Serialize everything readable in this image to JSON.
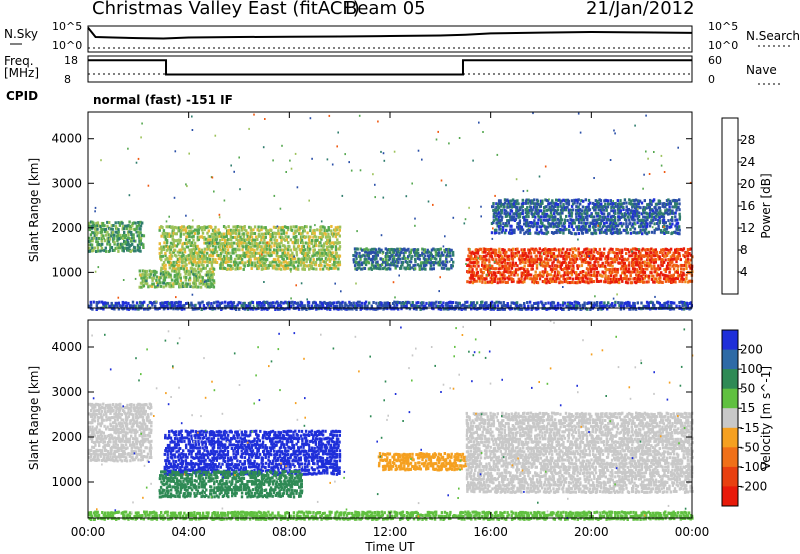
{
  "header": {
    "station": "Christmas Valley East (fitACF)",
    "beam": "Beam 05",
    "date": "21/Jan/2012"
  },
  "top_panel": {
    "left_label": "N.Sky",
    "right_label": "N.Search",
    "left_ticks": [
      "10^5",
      "10^0"
    ],
    "right_ticks": [
      "10^5",
      "10^0"
    ]
  },
  "freq_panel": {
    "left_label_1": "Freq.",
    "left_label_2": "[MHz]",
    "right_label": "Nave",
    "left_ticks": [
      "18",
      "8"
    ],
    "right_ticks": [
      "60",
      "0"
    ]
  },
  "cpid": {
    "label": "CPID",
    "value": "normal (fast) -151 IF"
  },
  "x_axis": {
    "label": "Time UT",
    "ticks": [
      "00:00",
      "04:00",
      "08:00",
      "12:00",
      "16:00",
      "20:00",
      "00:00"
    ]
  },
  "chart_data": [
    {
      "type": "line",
      "title": "N.Sky / N.Search",
      "x_hours": [
        0,
        0.3,
        1,
        2,
        3,
        4,
        6,
        8,
        10,
        12,
        14,
        15,
        16,
        18,
        20,
        22,
        24
      ],
      "series": [
        {
          "name": "N.Sky",
          "values": [
            120000,
            900,
            700,
            500,
            400,
            700,
            900,
            1000,
            1200,
            1500,
            2000,
            3000,
            6000,
            9000,
            12000,
            10000,
            8000
          ]
        },
        {
          "name": "N.Search",
          "values": [
            5,
            5,
            5,
            5,
            5,
            5,
            5,
            5,
            5,
            5,
            5,
            5,
            5,
            5,
            5,
            5,
            5
          ]
        }
      ],
      "ylim": [
        1,
        100000
      ],
      "yscale": "log"
    },
    {
      "type": "line",
      "title": "Freq. / Nave",
      "series": [
        {
          "name": "Freq. [MHz]",
          "x_hours": [
            0,
            3.1,
            3.1,
            14.9,
            14.9,
            24
          ],
          "values": [
            17,
            17,
            10.5,
            10.5,
            17,
            17
          ]
        },
        {
          "name": "Nave",
          "x_hours": [
            0,
            24
          ],
          "values": [
            7,
            7
          ]
        }
      ],
      "ylim_left": [
        8,
        18
      ],
      "ylim_right": [
        0,
        60
      ]
    },
    {
      "type": "heatmap",
      "title": "Power",
      "ylabel": "Slant Range [km]",
      "yticks": [
        1000,
        2000,
        3000,
        4000
      ],
      "ylim": [
        200,
        4600
      ],
      "xlim_hours": [
        0,
        24
      ],
      "colorbar_label": "Power [dB]",
      "colorbar_ticks": [
        4,
        8,
        12,
        16,
        20,
        24,
        28
      ],
      "colorbar_range": [
        0,
        32
      ],
      "colors": [
        "#1f2fd9",
        "#2a4fa8",
        "#2f7d6d",
        "#55a84f",
        "#9cc25a",
        "#e7b938",
        "#f08a1d",
        "#f05a12",
        "#e81a0a"
      ],
      "echo_regions": [
        {
          "t0": 0.0,
          "t1": 2.2,
          "r0": 1500,
          "r1": 2200,
          "value": 12
        },
        {
          "t0": 2.8,
          "t1": 10.0,
          "r0": 1100,
          "r1": 2100,
          "value": 16
        },
        {
          "t0": 2.0,
          "t1": 5.0,
          "r0": 700,
          "r1": 1100,
          "value": 14
        },
        {
          "t0": 10.5,
          "t1": 14.5,
          "r0": 1100,
          "r1": 1600,
          "value": 8
        },
        {
          "t0": 15.0,
          "t1": 24.0,
          "r0": 800,
          "r1": 1600,
          "value": 28
        },
        {
          "t0": 16.0,
          "t1": 23.5,
          "r0": 1900,
          "r1": 2700,
          "value": 6
        },
        {
          "t0": 0.0,
          "t1": 24.0,
          "r0": 200,
          "r1": 400,
          "value": 4
        }
      ]
    },
    {
      "type": "heatmap",
      "title": "Velocity",
      "ylabel": "Slant Range [km]",
      "yticks": [
        1000,
        2000,
        3000,
        4000
      ],
      "ylim": [
        200,
        4600
      ],
      "xlim_hours": [
        0,
        24
      ],
      "colorbar_label": "Velocity [m s^-1]",
      "colorbar_ticks": [
        200,
        100,
        50,
        15,
        -15,
        -50,
        -100,
        -200
      ],
      "colors": [
        "#1f2fd9",
        "#2e6aa6",
        "#2f8a55",
        "#60c040",
        "#c8c8c8",
        "#f5a020",
        "#f07018",
        "#e84010",
        "#e81a0a"
      ],
      "echo_regions": [
        {
          "t0": 0.0,
          "t1": 2.5,
          "r0": 1500,
          "r1": 2800,
          "value": 0
        },
        {
          "t0": 3.0,
          "t1": 10.0,
          "r0": 1200,
          "r1": 2200,
          "value": 180
        },
        {
          "t0": 2.8,
          "t1": 8.5,
          "r0": 700,
          "r1": 1300,
          "value": 60
        },
        {
          "t0": 11.5,
          "t1": 15.0,
          "r0": 1300,
          "r1": 1700,
          "value": -40
        },
        {
          "t0": 15.0,
          "t1": 24.0,
          "r0": 800,
          "r1": 2600,
          "value": 0
        },
        {
          "t0": 0.0,
          "t1": 24.0,
          "r0": 200,
          "r1": 400,
          "value": 40
        }
      ]
    }
  ]
}
